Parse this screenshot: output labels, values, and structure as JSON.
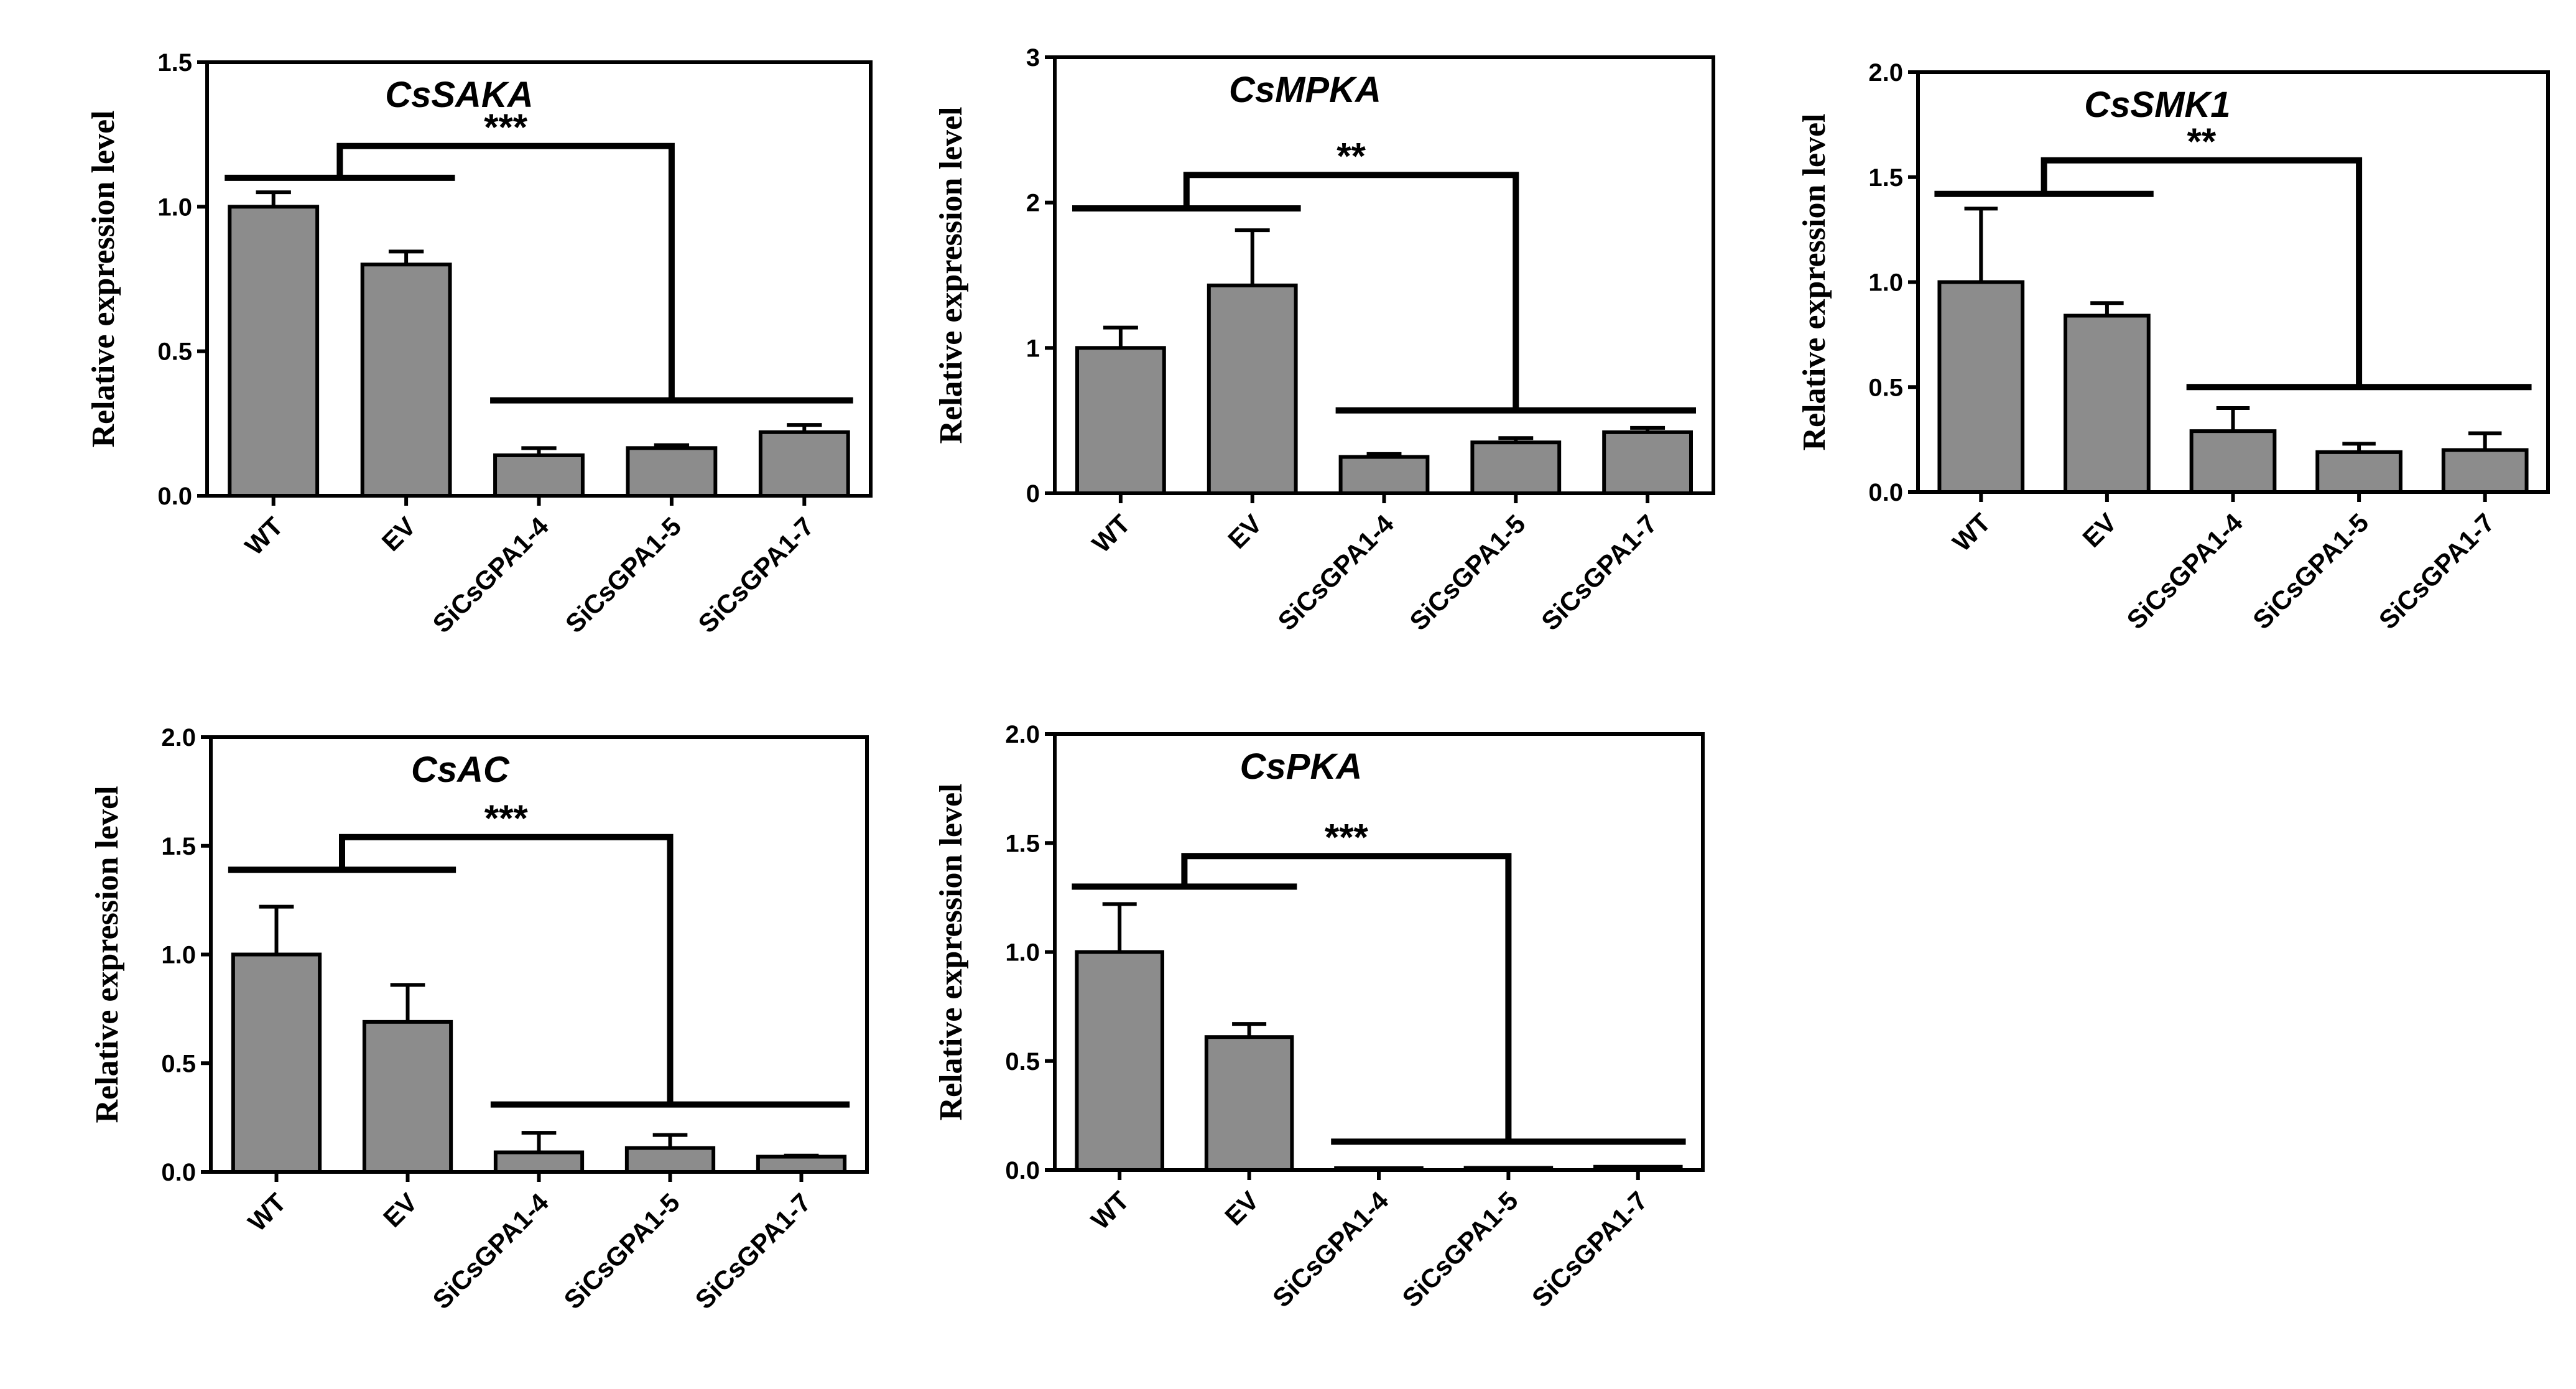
{
  "figure": {
    "style": {
      "bar_color": "#8c8c8c",
      "bar_stroke": "#000000",
      "axis_color": "#000000"
    }
  },
  "chart_data": [
    {
      "type": "bar",
      "title": "CsSAKA",
      "ylabel": "Relative expression level",
      "categories": [
        "WT",
        "EV",
        "SiCsGPA1-4",
        "SiCsGPA1-5",
        "SiCsGPA1-7"
      ],
      "values": [
        1.0,
        0.8,
        0.14,
        0.165,
        0.22
      ],
      "errors": [
        0.05,
        0.045,
        0.025,
        0.01,
        0.025
      ],
      "ylim": [
        0,
        1.5
      ],
      "yticks": [
        0.0,
        0.5,
        1.0,
        1.5
      ],
      "ytick_labels": [
        "0.0",
        "0.5",
        "1.0",
        "1.5"
      ],
      "significance": "***",
      "group_lines": {
        "control": 1.1,
        "treated": 0.33,
        "top": 1.21
      }
    },
    {
      "type": "bar",
      "title": "CsMPKA",
      "ylabel": "Relative expression level",
      "categories": [
        "WT",
        "EV",
        "SiCsGPA1-4",
        "SiCsGPA1-5",
        "SiCsGPA1-7"
      ],
      "values": [
        1.0,
        1.43,
        0.25,
        0.35,
        0.42
      ],
      "errors": [
        0.14,
        0.38,
        0.02,
        0.03,
        0.03
      ],
      "ylim": [
        0,
        3
      ],
      "yticks": [
        0,
        1,
        2,
        3
      ],
      "ytick_labels": [
        "0",
        "1",
        "2",
        "3"
      ],
      "significance": "**",
      "group_lines": {
        "control": 1.96,
        "treated": 0.57,
        "top": 2.19
      }
    },
    {
      "type": "bar",
      "title": "CsSMK1",
      "ylabel": "Relative expression level",
      "categories": [
        "WT",
        "EV",
        "SiCsGPA1-4",
        "SiCsGPA1-5",
        "SiCsGPA1-7"
      ],
      "values": [
        1.0,
        0.84,
        0.29,
        0.19,
        0.2
      ],
      "errors": [
        0.35,
        0.06,
        0.11,
        0.04,
        0.08
      ],
      "ylim": [
        0,
        2
      ],
      "yticks": [
        0.0,
        0.5,
        1.0,
        1.5,
        2.0
      ],
      "ytick_labels": [
        "0.0",
        "0.5",
        "1.0",
        "1.5",
        "2.0"
      ],
      "significance": "**",
      "group_lines": {
        "control": 1.42,
        "treated": 0.5,
        "top": 1.58
      }
    },
    {
      "type": "bar",
      "title": "CsAC",
      "ylabel": "Relative expression level",
      "categories": [
        "WT",
        "EV",
        "SiCsGPA1-4",
        "SiCsGPA1-5",
        "SiCsGPA1-7"
      ],
      "values": [
        1.0,
        0.69,
        0.09,
        0.11,
        0.07
      ],
      "errors": [
        0.22,
        0.17,
        0.09,
        0.06,
        0.005
      ],
      "ylim": [
        0,
        2
      ],
      "yticks": [
        0.0,
        0.5,
        1.0,
        1.5,
        2.0
      ],
      "ytick_labels": [
        "0.0",
        "0.5",
        "1.0",
        "1.5",
        "2.0"
      ],
      "significance": "***",
      "group_lines": {
        "control": 1.39,
        "treated": 0.31,
        "top": 1.54
      }
    },
    {
      "type": "bar",
      "title": "CsPKA",
      "ylabel": "Relative expression level",
      "categories": [
        "WT",
        "EV",
        "SiCsGPA1-4",
        "SiCsGPA1-5",
        "SiCsGPA1-7"
      ],
      "values": [
        1.0,
        0.61,
        0.005,
        0.01,
        0.015
      ],
      "errors": [
        0.22,
        0.06,
        0.0,
        0.0,
        0.0
      ],
      "ylim": [
        0,
        2
      ],
      "yticks": [
        0.0,
        0.5,
        1.0,
        1.5,
        2.0
      ],
      "ytick_labels": [
        "0.0",
        "0.5",
        "1.0",
        "1.5",
        "2.0"
      ],
      "significance": "***",
      "group_lines": {
        "control": 1.3,
        "treated": 0.13,
        "top": 1.44
      }
    }
  ]
}
